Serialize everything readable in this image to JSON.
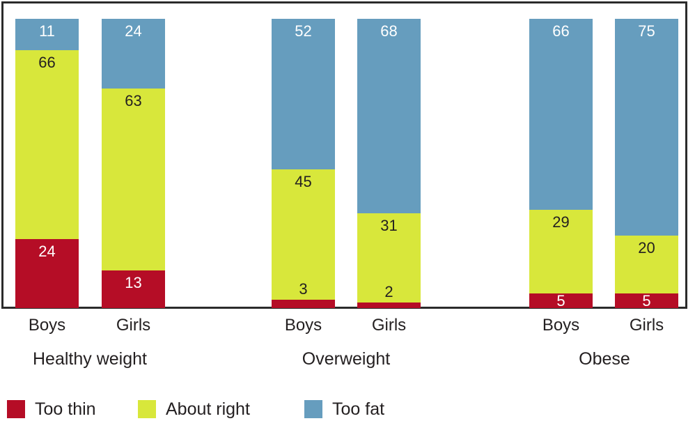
{
  "chart_data": {
    "type": "bar",
    "stacked": true,
    "unit": "percent",
    "title": "",
    "xlabel": "",
    "ylabel": "",
    "grid": false,
    "legend_position": "bottom",
    "series_names": [
      "Too thin",
      "About right",
      "Too fat"
    ],
    "series_colors": [
      "#b50d26",
      "#d8e73b",
      "#669dbe"
    ],
    "label_text_colors": [
      "#ffffff",
      "#231f20",
      "#ffffff"
    ],
    "groups": [
      {
        "label": "Healthy weight",
        "categories": [
          "Boys",
          "Girls"
        ],
        "values": [
          [
            24,
            66,
            11
          ],
          [
            13,
            63,
            24
          ]
        ]
      },
      {
        "label": "Overweight",
        "categories": [
          "Boys",
          "Girls"
        ],
        "values": [
          [
            3,
            45,
            52
          ],
          [
            2,
            31,
            68
          ]
        ]
      },
      {
        "label": "Obese",
        "categories": [
          "Boys",
          "Girls"
        ],
        "values": [
          [
            5,
            29,
            66
          ],
          [
            5,
            20,
            75
          ]
        ]
      }
    ]
  },
  "frame_color": "#2b2b2b",
  "text_color": "#231f20"
}
